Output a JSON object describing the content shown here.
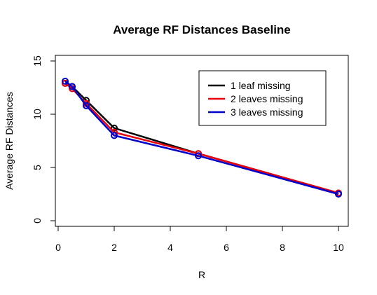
{
  "chart_data": {
    "type": "line",
    "title": "Average RF Distances Baseline",
    "xlabel": "R",
    "ylabel": "Average RF Distances",
    "xlim": [
      0,
      10.3
    ],
    "ylim": [
      0,
      15
    ],
    "x_ticks": [
      0,
      2,
      4,
      6,
      8,
      10
    ],
    "y_ticks": [
      0,
      5,
      10,
      15
    ],
    "grid": false,
    "legend_position": "top-right",
    "x": [
      0.25,
      0.5,
      1,
      2,
      5,
      10
    ],
    "series": [
      {
        "name": "1 leaf missing",
        "color": "#000000",
        "values": [
          12.9,
          12.6,
          11.3,
          8.7,
          6.3,
          2.6
        ]
      },
      {
        "name": "2 leaves missing",
        "color": "#e8000b",
        "values": [
          12.9,
          12.4,
          11.0,
          8.3,
          6.3,
          2.6
        ]
      },
      {
        "name": "3 leaves missing",
        "color": "#0000cc",
        "values": [
          13.1,
          12.6,
          10.8,
          8.0,
          6.1,
          2.5
        ]
      }
    ]
  }
}
